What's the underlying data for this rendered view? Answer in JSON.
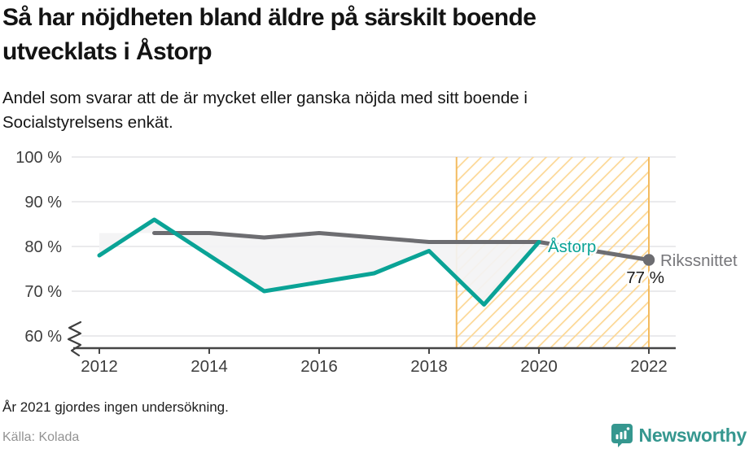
{
  "header": {
    "title_line1": "Så har nöjdheten bland äldre på särskilt boende",
    "title_line2": "utvecklats i Åstorp",
    "subtitle_line1": "Andel som svarar att de är mycket eller ganska nöjda med sitt boende i",
    "subtitle_line2": "Socialstyrelsens enkät."
  },
  "chart_data": {
    "type": "line",
    "title": "Så har nöjdheten bland äldre på särskilt boende utvecklats i Åstorp",
    "xlabel": "",
    "ylabel": "",
    "ylim": [
      60,
      100
    ],
    "xlim": [
      2011.5,
      2022.5
    ],
    "grid": true,
    "axis_break_at_60": true,
    "yticks": [
      100,
      90,
      80,
      70,
      60
    ],
    "ytick_suffix": " %",
    "xticks": [
      2012,
      2014,
      2016,
      2018,
      2020,
      2022
    ],
    "series": [
      {
        "name": "Åstorp",
        "color": "#0aa396",
        "x": [
          2012,
          2013,
          2014,
          2015,
          2016,
          2017,
          2018,
          2019,
          2020
        ],
        "values": [
          78,
          86,
          78,
          70,
          72,
          74,
          79,
          67,
          81
        ]
      },
      {
        "name": "Rikssnittet",
        "color": "#6d6d71",
        "x": [
          2013,
          2014,
          2015,
          2016,
          2017,
          2018,
          2019,
          2020,
          2022
        ],
        "values": [
          83,
          83,
          82,
          83,
          82,
          81,
          81,
          81,
          77
        ]
      }
    ],
    "end_point_label": "77 %",
    "end_point_value": 77,
    "end_point_year": 2022,
    "band_fill_between_series": true,
    "highlight_region": {
      "from": 2018.5,
      "to": 2022,
      "style": "hatched",
      "hatch_color": "#fcd794",
      "border_color": "#f3bb60"
    },
    "legend_position": "inline-end-labels"
  },
  "footnote": "År 2021 gjordes ingen undersökning.",
  "source": "Källa: Kolada",
  "logo": {
    "text": "Newsworthy",
    "color": "#35978f"
  },
  "colors": {
    "accent_teal": "#0aa396",
    "line_gray": "#6d6d71",
    "grid": "#e4e4e6",
    "axis": "#454545",
    "hatch": "#fcd794",
    "hatch_border": "#f3bb60",
    "band": "#f3f3f4"
  }
}
